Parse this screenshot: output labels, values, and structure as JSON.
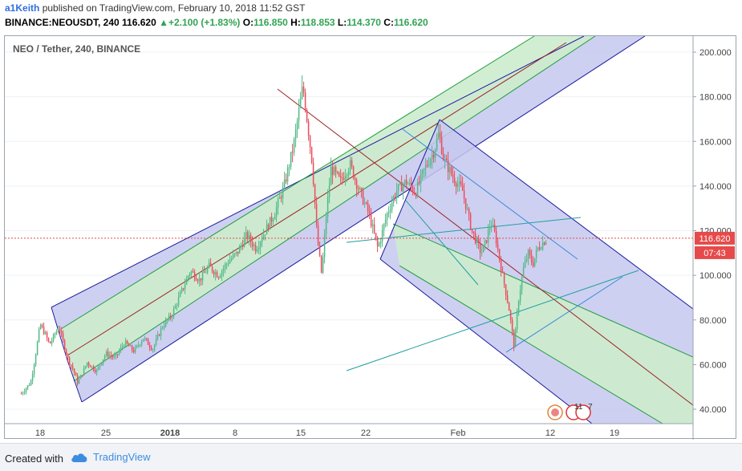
{
  "header": {
    "author": "a1Keith",
    "published_text": "published on TradingView.com, February 10, 2018 11:52 GST",
    "symbol": "BINANCE:NEOUSDT, 240",
    "last": "116.620",
    "change": "+2.100 (+1.83%)",
    "open_label": "O:",
    "open": "116.850",
    "high_label": "H:",
    "high": "118.853",
    "low_label": "L:",
    "low": "114.370",
    "close_label": "C:",
    "close": "116.620"
  },
  "chart_title": "NEO / Tether, 240, BINANCE",
  "price_tag": "116.620",
  "countdown": "07:43",
  "event_badges": {
    "count_a": "11",
    "count_b": "7"
  },
  "footer": {
    "created_with": "Created with",
    "brand": "TradingView"
  },
  "colors": {
    "up": "#53b987",
    "down": "#eb4d5c",
    "channel_blue": "#1c1c9e",
    "channel_fill": "#c5c8ee",
    "channel_green": "#209c3c",
    "inner_fill": "#cdeccd",
    "median": "#9c2222",
    "last_price": "#e64a4a",
    "arrow_up": "#31a354"
  },
  "chart_data": {
    "type": "candlestick",
    "y_axis": {
      "min": 35,
      "max": 205,
      "ticks": [
        "200.000",
        "180.000",
        "160.000",
        "140.000",
        "120.000",
        "100.000",
        "80.000",
        "60.000",
        "40.000"
      ]
    },
    "x_axis": {
      "ticks": [
        "18",
        "25",
        "2018",
        "8",
        "15",
        "22",
        "Feb",
        "12",
        "19"
      ]
    },
    "last_price": 116.62,
    "price_path": [
      [
        "2017-12-16",
        47
      ],
      [
        "2017-12-17",
        52
      ],
      [
        "2017-12-17T12",
        64
      ],
      [
        "2017-12-18",
        78
      ],
      [
        "2017-12-18T12",
        74
      ],
      [
        "2017-12-19",
        69
      ],
      [
        "2017-12-20",
        77
      ],
      [
        "2017-12-21",
        62
      ],
      [
        "2017-12-21T12",
        58
      ],
      [
        "2017-12-22",
        52
      ],
      [
        "2017-12-22T12",
        56
      ],
      [
        "2017-12-23",
        61
      ],
      [
        "2017-12-24",
        57
      ],
      [
        "2017-12-25",
        65
      ],
      [
        "2017-12-26",
        63
      ],
      [
        "2017-12-27",
        70
      ],
      [
        "2017-12-28",
        66
      ],
      [
        "2017-12-29",
        72
      ],
      [
        "2017-12-30",
        67
      ],
      [
        "2017-12-31",
        77
      ],
      [
        "2018-01-01",
        82
      ],
      [
        "2018-01-02",
        92
      ],
      [
        "2018-01-03",
        102
      ],
      [
        "2018-01-04",
        98
      ],
      [
        "2018-01-05",
        104
      ],
      [
        "2018-01-06",
        100
      ],
      [
        "2018-01-07",
        106
      ],
      [
        "2018-01-08",
        110
      ],
      [
        "2018-01-09",
        118
      ],
      [
        "2018-01-10",
        112
      ],
      [
        "2018-01-11",
        120
      ],
      [
        "2018-01-12",
        128
      ],
      [
        "2018-01-13",
        140
      ],
      [
        "2018-01-14",
        158
      ],
      [
        "2018-01-15",
        185
      ],
      [
        "2018-01-15T12",
        168
      ],
      [
        "2018-01-16",
        150
      ],
      [
        "2018-01-16T12",
        118
      ],
      [
        "2018-01-17",
        100
      ],
      [
        "2018-01-17T12",
        128
      ],
      [
        "2018-01-18",
        148
      ],
      [
        "2018-01-19",
        142
      ],
      [
        "2018-01-20",
        150
      ],
      [
        "2018-01-21",
        138
      ],
      [
        "2018-01-22",
        128
      ],
      [
        "2018-01-23",
        112
      ],
      [
        "2018-01-24",
        128
      ],
      [
        "2018-01-25",
        138
      ],
      [
        "2018-01-26",
        142
      ],
      [
        "2018-01-27",
        137
      ],
      [
        "2018-01-28",
        148
      ],
      [
        "2018-01-29",
        156
      ],
      [
        "2018-01-29T12",
        164
      ],
      [
        "2018-01-30",
        152
      ],
      [
        "2018-01-31",
        144
      ],
      [
        "2018-02-01",
        138
      ],
      [
        "2018-02-02",
        120
      ],
      [
        "2018-02-03",
        110
      ],
      [
        "2018-02-03T12",
        115
      ],
      [
        "2018-02-04",
        124
      ],
      [
        "2018-02-04T12",
        118
      ],
      [
        "2018-02-05",
        106
      ],
      [
        "2018-02-06",
        84
      ],
      [
        "2018-02-06T12",
        68
      ],
      [
        "2018-02-07",
        90
      ],
      [
        "2018-02-07T12",
        103
      ],
      [
        "2018-02-08",
        110
      ],
      [
        "2018-02-08T12",
        105
      ],
      [
        "2018-02-09",
        112
      ],
      [
        "2018-02-10",
        116.6
      ]
    ]
  }
}
